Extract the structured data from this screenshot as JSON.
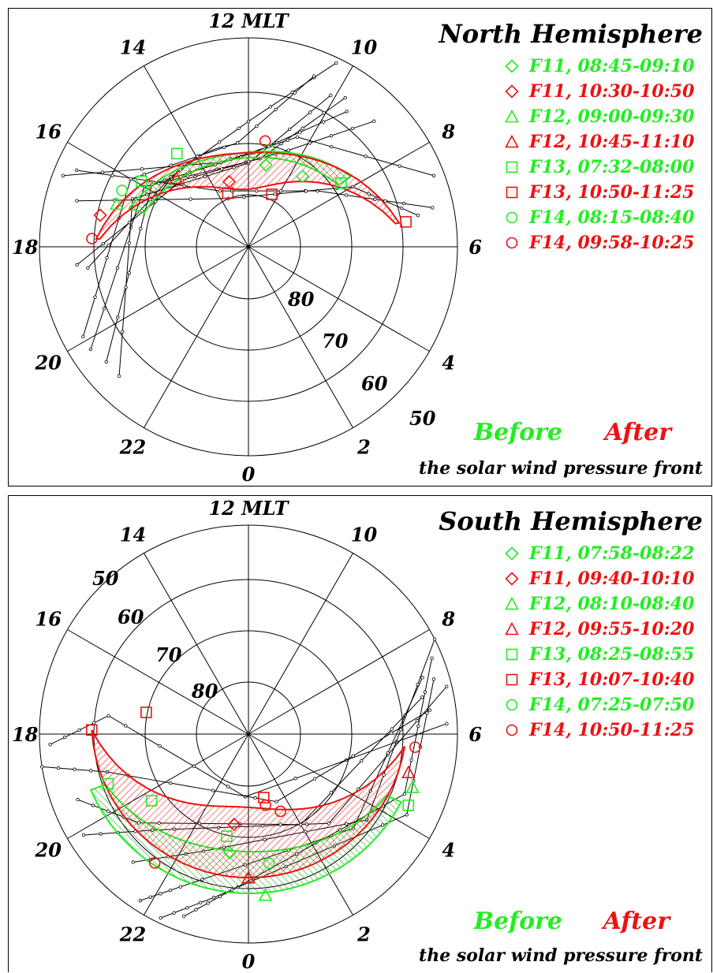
{
  "colors": {
    "before": "#22ee22",
    "after": "#ee1111",
    "grid": "#000000"
  },
  "chart_data": [
    {
      "type": "scatter",
      "projection": "polar MLT / magnetic latitude",
      "title": "North Hemisphere",
      "hemisphere": "north",
      "mlt_labels": [
        "12 MLT",
        "14",
        "16",
        "18",
        "20",
        "22",
        "0",
        "2",
        "4",
        "6",
        "8",
        "10"
      ],
      "latitude_labels": [
        "80",
        "70",
        "60",
        "50"
      ],
      "latitude_circles": [
        80,
        70,
        60,
        50
      ],
      "legend": [
        {
          "label": "F11, 08:45-09:10",
          "marker": "diamond-icon",
          "group": "before"
        },
        {
          "label": "F11, 10:30-10:50",
          "marker": "diamond-icon",
          "group": "after"
        },
        {
          "label": "F12, 09:00-09:30",
          "marker": "triangle-icon",
          "group": "before"
        },
        {
          "label": "F12, 10:45-11:10",
          "marker": "triangle-icon",
          "group": "after"
        },
        {
          "label": "F13, 07:32-08:00",
          "marker": "square-icon",
          "group": "before"
        },
        {
          "label": "F13, 10:50-11:25",
          "marker": "square-icon",
          "group": "after"
        },
        {
          "label": "F14, 08:15-08:40",
          "marker": "circle-icon",
          "group": "before"
        },
        {
          "label": "F14, 09:58-10:25",
          "marker": "circle-icon",
          "group": "after"
        }
      ],
      "boundary_points": [
        {
          "group": "before",
          "marker": "diamond",
          "mlt": 9.5,
          "lat": 73
        },
        {
          "group": "after",
          "marker": "diamond",
          "mlt": 13.1,
          "lat": 77
        },
        {
          "group": "before",
          "marker": "triangle",
          "mlt": 16.8,
          "lat": 63.5
        },
        {
          "group": "after",
          "marker": "triangle",
          "mlt": 15.1,
          "lat": 71
        },
        {
          "group": "before",
          "marker": "square",
          "mlt": 15.9,
          "lat": 66
        },
        {
          "group": "after",
          "marker": "square",
          "mlt": 13.4,
          "lat": 79
        },
        {
          "group": "after",
          "marker": "square",
          "mlt": 10.4,
          "lat": 79
        },
        {
          "group": "after",
          "marker": "square",
          "mlt": 6.6,
          "lat": 59.5
        },
        {
          "group": "before",
          "marker": "square",
          "mlt": 8.3,
          "lat": 68.5
        },
        {
          "group": "before",
          "marker": "square",
          "mlt": 14.5,
          "lat": 67.5
        },
        {
          "group": "before",
          "marker": "circle",
          "mlt": 11.2,
          "lat": 71
        },
        {
          "group": "before",
          "marker": "circle",
          "mlt": 16.4,
          "lat": 63.5
        },
        {
          "group": "after",
          "marker": "circle",
          "mlt": 11.4,
          "lat": 69.5
        },
        {
          "group": "after",
          "marker": "circle",
          "mlt": 17.8,
          "lat": 60
        },
        {
          "group": "after",
          "marker": "diamond",
          "mlt": 17.2,
          "lat": 61
        },
        {
          "group": "before",
          "marker": "diamond",
          "mlt": 11.2,
          "lat": 74
        }
      ],
      "footer": {
        "before": "Before",
        "after": "After",
        "caption": "the solar wind pressure front"
      }
    },
    {
      "type": "scatter",
      "projection": "polar MLT / magnetic latitude",
      "title": "South Hemisphere",
      "hemisphere": "south",
      "mlt_labels": [
        "12 MLT",
        "14",
        "16",
        "18",
        "20",
        "22",
        "0",
        "2",
        "4",
        "6",
        "8",
        "10"
      ],
      "latitude_labels": [
        "50",
        "60",
        "70",
        "80"
      ],
      "latitude_circles": [
        80,
        70,
        60,
        50
      ],
      "legend": [
        {
          "label": "F11, 07:58-08:22",
          "marker": "diamond-icon",
          "group": "before"
        },
        {
          "label": "F11, 09:40-10:10",
          "marker": "diamond-icon",
          "group": "after"
        },
        {
          "label": "F12, 08:10-08:40",
          "marker": "triangle-icon",
          "group": "before"
        },
        {
          "label": "F12, 09:55-10:20",
          "marker": "triangle-icon",
          "group": "after"
        },
        {
          "label": "F13, 08:25-08:55",
          "marker": "square-icon",
          "group": "before"
        },
        {
          "label": "F13, 10:07-10:40",
          "marker": "square-icon",
          "group": "after"
        },
        {
          "label": "F14, 07:25-07:50",
          "marker": "circle-icon",
          "group": "before"
        },
        {
          "label": "F14, 10:50-11:25",
          "marker": "circle-icon",
          "group": "after"
        }
      ],
      "boundary_points": [
        {
          "group": "after",
          "marker": "square",
          "mlt": 17.9,
          "lat": 60
        },
        {
          "group": "after",
          "marker": "square",
          "mlt": 17.2,
          "lat": 70
        },
        {
          "group": "after",
          "marker": "square",
          "mlt": 0.9,
          "lat": 77.5
        },
        {
          "group": "before",
          "marker": "square",
          "mlt": 19.3,
          "lat": 61.5
        },
        {
          "group": "before",
          "marker": "square",
          "mlt": 20.3,
          "lat": 67.5
        },
        {
          "group": "before",
          "marker": "square",
          "mlt": 23.2,
          "lat": 70
        },
        {
          "group": "before",
          "marker": "square",
          "mlt": 4.4,
          "lat": 56.5
        },
        {
          "group": "after",
          "marker": "diamond",
          "mlt": 23.4,
          "lat": 72.5
        },
        {
          "group": "after",
          "marker": "circle",
          "mlt": 1.5,
          "lat": 74
        },
        {
          "group": "after",
          "marker": "circle",
          "mlt": 0.9,
          "lat": 76
        },
        {
          "group": "after",
          "marker": "circle",
          "mlt": 21.6,
          "lat": 59.5
        },
        {
          "group": "after",
          "marker": "circle",
          "mlt": 5.7,
          "lat": 58
        },
        {
          "group": "after",
          "marker": "triangle",
          "mlt": 0.0,
          "lat": 62.5
        },
        {
          "group": "after",
          "marker": "triangle",
          "mlt": 5.1,
          "lat": 58.5
        },
        {
          "group": "before",
          "marker": "triangle",
          "mlt": 0.4,
          "lat": 59
        },
        {
          "group": "before",
          "marker": "triangle",
          "mlt": 4.8,
          "lat": 57
        },
        {
          "group": "before",
          "marker": "circle",
          "mlt": 0.6,
          "lat": 65
        },
        {
          "group": "before",
          "marker": "diamond",
          "mlt": 23.4,
          "lat": 67
        }
      ],
      "footer": {
        "before": "Before",
        "after": "After",
        "caption": "the solar wind pressure front"
      }
    }
  ]
}
